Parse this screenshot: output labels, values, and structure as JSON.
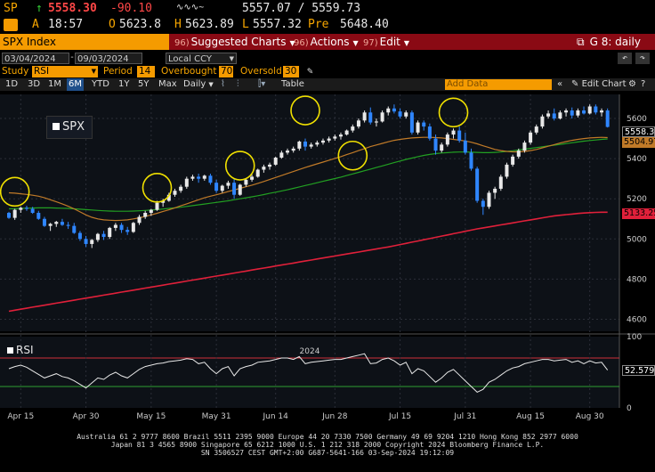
{
  "quote": {
    "ticker": "SP",
    "arrow": "↑",
    "last": "5558.30",
    "change": "-90.10",
    "bid_ask": "5557.07 / 5559.73",
    "status": "A",
    "time": "18:57",
    "open_label": "O",
    "open": "5623.8",
    "high_label": "H",
    "high": "5623.89",
    "low_label": "L",
    "low": "5557.32",
    "pre_label": "Pre",
    "pre": "5648.40"
  },
  "title": {
    "security": "SPX Index",
    "buttons": [
      {
        "num": "96)",
        "label": "Suggested Charts"
      },
      {
        "num": "96)",
        "label": "Actions"
      },
      {
        "num": "97)",
        "label": "Edit"
      }
    ],
    "right": "G 8: daily"
  },
  "range": {
    "start": "03/04/2024",
    "end": "09/03/2024",
    "currency": "Local CCY"
  },
  "study": {
    "study_label": "Study",
    "study_value": "RSI",
    "period_label": "Period",
    "period_value": "14",
    "overbought_label": "Overbought",
    "overbought_value": "70",
    "oversold_label": "Oversold",
    "oversold_value": "30"
  },
  "periods": [
    "1D",
    "3D",
    "1M",
    "6M",
    "YTD",
    "1Y",
    "5Y",
    "Max"
  ],
  "frequency": "Daily",
  "table_label": "Table",
  "add_data_placeholder": "Add Data",
  "edit_chart_label": "Edit Chart",
  "panels": {
    "price": "SPX",
    "rsi": "RSI"
  },
  "price_tags": {
    "last": "5558.30",
    "ma_short": "5504.97",
    "ma_long": "5133.25"
  },
  "rsi_tag": "52.579",
  "colors": {
    "accent": "#f7a600",
    "title_bar": "#8a0a14",
    "ma50": "#c07a28",
    "ma100": "#22a022",
    "ma200": "#e0203a",
    "candle_up": "#e8e8e8",
    "candle_down": "#2f86ff",
    "highlight": "#f0e000"
  },
  "chart_data": {
    "type": "candlestick",
    "title": "SPX",
    "ylim": [
      4540,
      5720
    ],
    "yticks": [
      4600,
      4800,
      5000,
      5200,
      5400,
      5600
    ],
    "xticks": [
      "Apr 15",
      "Apr 30",
      "May 15",
      "May 31",
      "Jun 14",
      "Jun 28",
      "Jul 15",
      "Jul 31",
      "Aug 15",
      "Aug 30"
    ],
    "x_year": "2024",
    "rsi_ylim": [
      0,
      100
    ],
    "rsi_yticks": [
      0,
      50,
      100
    ],
    "rsi_levels": [
      70,
      30
    ],
    "candles": [
      [
        5130,
        5135,
        5100,
        5105
      ],
      [
        5105,
        5150,
        5095,
        5145
      ],
      [
        5145,
        5160,
        5130,
        5155
      ],
      [
        5155,
        5165,
        5140,
        5150
      ],
      [
        5150,
        5160,
        5125,
        5130
      ],
      [
        5130,
        5140,
        5095,
        5100
      ],
      [
        5100,
        5110,
        5060,
        5065
      ],
      [
        5065,
        5080,
        5040,
        5075
      ],
      [
        5075,
        5090,
        5060,
        5085
      ],
      [
        5085,
        5100,
        5065,
        5070
      ],
      [
        5070,
        5085,
        5050,
        5065
      ],
      [
        5065,
        5080,
        5025,
        5030
      ],
      [
        5030,
        5040,
        4990,
        5000
      ],
      [
        5000,
        5015,
        4960,
        4975
      ],
      [
        4975,
        5000,
        4955,
        4995
      ],
      [
        4995,
        5030,
        4985,
        5025
      ],
      [
        5025,
        5040,
        4995,
        5010
      ],
      [
        5010,
        5060,
        5000,
        5055
      ],
      [
        5055,
        5080,
        5040,
        5070
      ],
      [
        5070,
        5080,
        5030,
        5045
      ],
      [
        5045,
        5060,
        5020,
        5035
      ],
      [
        5035,
        5085,
        5030,
        5080
      ],
      [
        5080,
        5120,
        5070,
        5110
      ],
      [
        5110,
        5140,
        5100,
        5130
      ],
      [
        5130,
        5150,
        5115,
        5145
      ],
      [
        5145,
        5190,
        5140,
        5180
      ],
      [
        5180,
        5200,
        5160,
        5190
      ],
      [
        5190,
        5230,
        5185,
        5220
      ],
      [
        5220,
        5250,
        5210,
        5240
      ],
      [
        5240,
        5270,
        5230,
        5260
      ],
      [
        5260,
        5310,
        5250,
        5300
      ],
      [
        5300,
        5320,
        5290,
        5310
      ],
      [
        5310,
        5325,
        5280,
        5300
      ],
      [
        5300,
        5320,
        5290,
        5315
      ],
      [
        5315,
        5325,
        5270,
        5280
      ],
      [
        5280,
        5295,
        5230,
        5240
      ],
      [
        5240,
        5270,
        5230,
        5265
      ],
      [
        5265,
        5290,
        5250,
        5280
      ],
      [
        5280,
        5300,
        5200,
        5220
      ],
      [
        5220,
        5275,
        5215,
        5270
      ],
      [
        5270,
        5300,
        5260,
        5295
      ],
      [
        5295,
        5320,
        5285,
        5310
      ],
      [
        5310,
        5350,
        5305,
        5345
      ],
      [
        5345,
        5370,
        5330,
        5360
      ],
      [
        5360,
        5380,
        5345,
        5370
      ],
      [
        5370,
        5410,
        5365,
        5405
      ],
      [
        5405,
        5440,
        5400,
        5430
      ],
      [
        5430,
        5450,
        5420,
        5440
      ],
      [
        5440,
        5460,
        5430,
        5450
      ],
      [
        5450,
        5490,
        5440,
        5485
      ],
      [
        5485,
        5500,
        5440,
        5460
      ],
      [
        5460,
        5480,
        5450,
        5470
      ],
      [
        5470,
        5490,
        5460,
        5480
      ],
      [
        5480,
        5500,
        5470,
        5490
      ],
      [
        5490,
        5510,
        5480,
        5500
      ],
      [
        5500,
        5520,
        5490,
        5510
      ],
      [
        5510,
        5530,
        5495,
        5520
      ],
      [
        5520,
        5545,
        5515,
        5540
      ],
      [
        5540,
        5570,
        5530,
        5560
      ],
      [
        5560,
        5600,
        5550,
        5590
      ],
      [
        5590,
        5640,
        5580,
        5630
      ],
      [
        5630,
        5655,
        5570,
        5580
      ],
      [
        5580,
        5600,
        5560,
        5585
      ],
      [
        5585,
        5640,
        5580,
        5630
      ],
      [
        5630,
        5660,
        5615,
        5650
      ],
      [
        5650,
        5670,
        5625,
        5635
      ],
      [
        5635,
        5650,
        5600,
        5610
      ],
      [
        5610,
        5640,
        5600,
        5630
      ],
      [
        5630,
        5640,
        5520,
        5530
      ],
      [
        5530,
        5590,
        5520,
        5580
      ],
      [
        5580,
        5590,
        5540,
        5560
      ],
      [
        5560,
        5575,
        5490,
        5500
      ],
      [
        5500,
        5520,
        5420,
        5440
      ],
      [
        5440,
        5480,
        5430,
        5470
      ],
      [
        5470,
        5530,
        5460,
        5520
      ],
      [
        5520,
        5550,
        5500,
        5540
      ],
      [
        5540,
        5560,
        5480,
        5490
      ],
      [
        5490,
        5530,
        5420,
        5430
      ],
      [
        5430,
        5450,
        5340,
        5350
      ],
      [
        5350,
        5360,
        5180,
        5190
      ],
      [
        5190,
        5200,
        5120,
        5160
      ],
      [
        5160,
        5240,
        5150,
        5230
      ],
      [
        5230,
        5260,
        5200,
        5250
      ],
      [
        5250,
        5320,
        5240,
        5310
      ],
      [
        5310,
        5380,
        5300,
        5370
      ],
      [
        5370,
        5420,
        5360,
        5410
      ],
      [
        5410,
        5450,
        5400,
        5440
      ],
      [
        5440,
        5490,
        5430,
        5480
      ],
      [
        5480,
        5540,
        5470,
        5530
      ],
      [
        5530,
        5570,
        5520,
        5560
      ],
      [
        5560,
        5620,
        5550,
        5610
      ],
      [
        5610,
        5640,
        5600,
        5625
      ],
      [
        5625,
        5650,
        5590,
        5600
      ],
      [
        5600,
        5640,
        5595,
        5630
      ],
      [
        5630,
        5650,
        5610,
        5640
      ],
      [
        5640,
        5655,
        5600,
        5615
      ],
      [
        5615,
        5650,
        5605,
        5640
      ],
      [
        5640,
        5660,
        5620,
        5625
      ],
      [
        5625,
        5670,
        5620,
        5660
      ],
      [
        5660,
        5670,
        5620,
        5630
      ],
      [
        5630,
        5650,
        5610,
        5640
      ],
      [
        5640,
        5650,
        5555,
        5558
      ]
    ],
    "ma_short": [
      5230,
      5228,
      5225,
      5222,
      5218,
      5213,
      5205,
      5195,
      5185,
      5175,
      5163,
      5150,
      5135,
      5120,
      5108,
      5100,
      5095,
      5093,
      5092,
      5093,
      5095,
      5100,
      5105,
      5112,
      5120,
      5128,
      5137,
      5145,
      5155,
      5165,
      5175,
      5185,
      5195,
      5205,
      5213,
      5220,
      5228,
      5236,
      5244,
      5252,
      5260,
      5268,
      5277,
      5286,
      5296,
      5306,
      5316,
      5326,
      5336,
      5346,
      5356,
      5365,
      5374,
      5383,
      5392,
      5401,
      5410,
      5420,
      5430,
      5440,
      5450,
      5460,
      5468,
      5476,
      5484,
      5491,
      5496,
      5500,
      5503,
      5505,
      5506,
      5506,
      5505,
      5503,
      5500,
      5496,
      5492,
      5488,
      5482,
      5474,
      5464,
      5455,
      5446,
      5440,
      5436,
      5434,
      5434,
      5436,
      5440,
      5446,
      5454,
      5462,
      5470,
      5478,
      5485,
      5491,
      5496,
      5500,
      5503,
      5505,
      5506,
      5505
    ],
    "ma_mid": [
      5150,
      5151,
      5152,
      5153,
      5154,
      5155,
      5155,
      5155,
      5154,
      5153,
      5152,
      5150,
      5148,
      5146,
      5144,
      5142,
      5140,
      5139,
      5138,
      5138,
      5138,
      5139,
      5140,
      5142,
      5144,
      5146,
      5149,
      5152,
      5155,
      5158,
      5162,
      5166,
      5170,
      5174,
      5178,
      5182,
      5186,
      5190,
      5195,
      5200,
      5205,
      5210,
      5215,
      5221,
      5227,
      5233,
      5239,
      5245,
      5252,
      5259,
      5266,
      5273,
      5280,
      5287,
      5294,
      5301,
      5308,
      5316,
      5324,
      5332,
      5340,
      5348,
      5356,
      5364,
      5372,
      5380,
      5388,
      5396,
      5403,
      5410,
      5416,
      5421,
      5425,
      5428,
      5430,
      5432,
      5433,
      5433,
      5432,
      5431,
      5430,
      5430,
      5431,
      5433,
      5436,
      5439,
      5443,
      5447,
      5451,
      5455,
      5459,
      5463,
      5467,
      5471,
      5475,
      5479,
      5483,
      5487,
      5490,
      5493,
      5496,
      5498
    ],
    "ma_long": [
      4640,
      4645,
      4650,
      4655,
      4660,
      4665,
      4670,
      4675,
      4680,
      4685,
      4690,
      4695,
      4700,
      4705,
      4710,
      4715,
      4720,
      4725,
      4730,
      4735,
      4740,
      4745,
      4750,
      4755,
      4760,
      4765,
      4770,
      4775,
      4780,
      4785,
      4790,
      4795,
      4800,
      4805,
      4810,
      4815,
      4820,
      4825,
      4830,
      4835,
      4840,
      4845,
      4850,
      4855,
      4860,
      4865,
      4870,
      4875,
      4880,
      4885,
      4890,
      4895,
      4900,
      4905,
      4910,
      4915,
      4920,
      4925,
      4930,
      4935,
      4940,
      4945,
      4950,
      4955,
      4960,
      4966,
      4972,
      4978,
      4984,
      4990,
      4996,
      5002,
      5008,
      5014,
      5020,
      5026,
      5032,
      5038,
      5044,
      5050,
      5055,
      5060,
      5065,
      5070,
      5075,
      5080,
      5085,
      5090,
      5095,
      5100,
      5105,
      5110,
      5115,
      5118,
      5121,
      5124,
      5127,
      5129,
      5131,
      5132,
      5133,
      5133
    ],
    "rsi": [
      55,
      58,
      60,
      57,
      52,
      47,
      42,
      45,
      48,
      44,
      42,
      38,
      33,
      28,
      35,
      42,
      40,
      46,
      50,
      45,
      42,
      48,
      54,
      58,
      60,
      62,
      63,
      65,
      66,
      67,
      69,
      68,
      62,
      64,
      55,
      48,
      55,
      58,
      45,
      55,
      58,
      60,
      64,
      65,
      66,
      68,
      70,
      70,
      68,
      72,
      62,
      64,
      65,
      66,
      67,
      68,
      68,
      70,
      72,
      74,
      76,
      62,
      63,
      68,
      70,
      66,
      60,
      64,
      48,
      55,
      52,
      44,
      36,
      42,
      50,
      54,
      46,
      38,
      30,
      22,
      26,
      36,
      40,
      46,
      52,
      56,
      58,
      62,
      64,
      66,
      68,
      68,
      66,
      67,
      68,
      64,
      66,
      62,
      66,
      63,
      64,
      53
    ]
  },
  "footer_lines": [
    "Australia 61 2 9777 8600 Brazil 5511 2395 9000 Europe 44 20 7330 7500 Germany 49 69 9204 1210 Hong Kong 852 2977 6000",
    "Japan 81 3 4565 8900     Singapore 65 6212 1000      U.S. 1 212 318 2000       Copyright 2024 Bloomberg Finance L.P.",
    "SN 3506527 CEST GMT+2:00 G687-5641-166 03-Sep-2024 19:12:09"
  ]
}
